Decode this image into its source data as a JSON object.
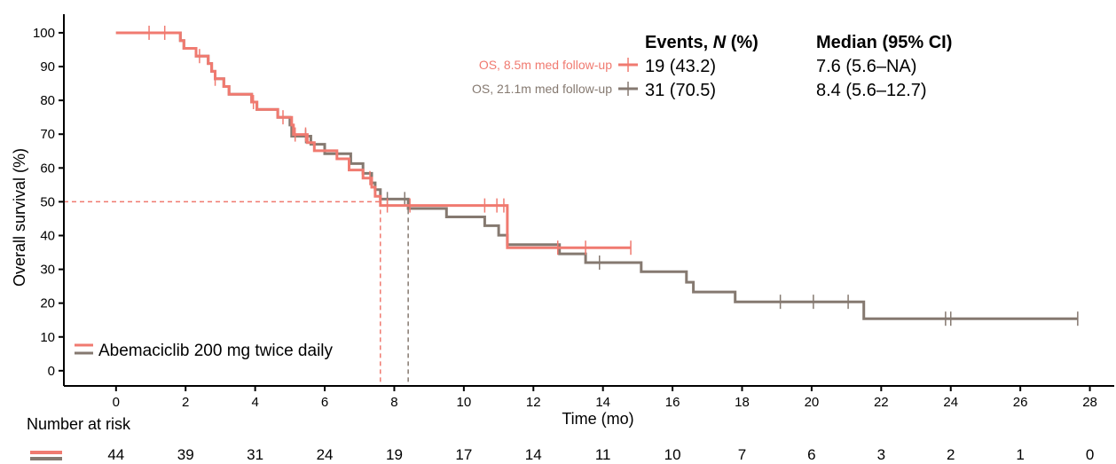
{
  "chart_data": {
    "type": "line",
    "subtype": "kaplan-meier",
    "xlabel": "Time (mo)",
    "ylabel": "Overall survival (%)",
    "xlim": [
      -1.5,
      28.7
    ],
    "ylim": [
      -4.5,
      105.5
    ],
    "xticks": [
      0,
      2,
      4,
      6,
      8,
      10,
      12,
      14,
      16,
      18,
      20,
      22,
      24,
      26,
      28
    ],
    "yticks": [
      0,
      10,
      20,
      30,
      40,
      50,
      60,
      70,
      80,
      90,
      100
    ],
    "grid": false,
    "legend": {
      "position": "bottom-left",
      "label": "Abemaciclib 200 mg twice daily"
    },
    "table_header": {
      "events": "Events, N (%)",
      "median": "Median (95% CI)"
    },
    "series": [
      {
        "name": "OS, 8.5m med follow-up",
        "color": "#f07a70",
        "events": "19 (43.2)",
        "median": "7.6 (5.6–NA)",
        "median_value": 7.6,
        "end_x": 14.8,
        "steps": [
          [
            0,
            100
          ],
          [
            1.85,
            100
          ],
          [
            1.85,
            97.7
          ],
          [
            1.95,
            97.7
          ],
          [
            1.95,
            95.4
          ],
          [
            2.3,
            95.4
          ],
          [
            2.3,
            93.1
          ],
          [
            2.65,
            93.1
          ],
          [
            2.65,
            90.9
          ],
          [
            2.75,
            90.9
          ],
          [
            2.75,
            88.6
          ],
          [
            2.85,
            88.6
          ],
          [
            2.85,
            86.4
          ],
          [
            3.1,
            86.4
          ],
          [
            3.1,
            84.1
          ],
          [
            3.25,
            84.1
          ],
          [
            3.25,
            81.8
          ],
          [
            3.9,
            81.8
          ],
          [
            3.9,
            79.5
          ],
          [
            4.05,
            79.5
          ],
          [
            4.05,
            77.3
          ],
          [
            4.65,
            77.3
          ],
          [
            4.65,
            75.0
          ],
          [
            5.05,
            75.0
          ],
          [
            5.05,
            72.7
          ],
          [
            5.1,
            72.7
          ],
          [
            5.1,
            69.9
          ],
          [
            5.5,
            69.9
          ],
          [
            5.5,
            67.5
          ],
          [
            5.7,
            67.5
          ],
          [
            5.7,
            65.1
          ],
          [
            6.35,
            65.1
          ],
          [
            6.35,
            62.7
          ],
          [
            6.7,
            62.7
          ],
          [
            6.7,
            59.4
          ],
          [
            7.1,
            59.4
          ],
          [
            7.1,
            57.0
          ],
          [
            7.35,
            57.0
          ],
          [
            7.35,
            54.3
          ],
          [
            7.45,
            54.3
          ],
          [
            7.45,
            51.6
          ],
          [
            7.6,
            51.6
          ],
          [
            7.6,
            48.9
          ],
          [
            11.25,
            48.9
          ],
          [
            11.25,
            36.4
          ],
          [
            14.8,
            36.4
          ]
        ],
        "censor_x": [
          0.95,
          1.4,
          2.4,
          2.85,
          3.95,
          4.8,
          5.15,
          5.45,
          7.3,
          7.8,
          8.45,
          10.6,
          10.95,
          11.15,
          12.7,
          13.5,
          14.8
        ]
      },
      {
        "name": "OS, 21.1m med follow-up",
        "color": "#857970",
        "events": "31 (70.5)",
        "median": "8.4 (5.6–12.7)",
        "median_value": 8.4,
        "end_x": 27.65,
        "steps": [
          [
            0,
            100
          ],
          [
            1.85,
            100
          ],
          [
            1.85,
            97.7
          ],
          [
            1.95,
            97.7
          ],
          [
            1.95,
            95.4
          ],
          [
            2.3,
            95.4
          ],
          [
            2.3,
            93.1
          ],
          [
            2.65,
            93.1
          ],
          [
            2.65,
            90.9
          ],
          [
            2.75,
            90.9
          ],
          [
            2.75,
            88.6
          ],
          [
            2.85,
            88.6
          ],
          [
            2.85,
            86.4
          ],
          [
            3.1,
            86.4
          ],
          [
            3.1,
            84.1
          ],
          [
            3.25,
            84.1
          ],
          [
            3.25,
            81.8
          ],
          [
            3.9,
            81.8
          ],
          [
            3.9,
            79.5
          ],
          [
            4.05,
            79.5
          ],
          [
            4.05,
            77.3
          ],
          [
            4.65,
            77.3
          ],
          [
            4.65,
            75.0
          ],
          [
            5.0,
            75.0
          ],
          [
            5.0,
            72.7
          ],
          [
            5.05,
            72.7
          ],
          [
            5.05,
            69.4
          ],
          [
            5.6,
            69.4
          ],
          [
            5.6,
            67.0
          ],
          [
            6.0,
            67.0
          ],
          [
            6.0,
            64.2
          ],
          [
            6.75,
            64.2
          ],
          [
            6.75,
            61.3
          ],
          [
            7.1,
            61.3
          ],
          [
            7.1,
            58.4
          ],
          [
            7.35,
            58.4
          ],
          [
            7.35,
            55.6
          ],
          [
            7.45,
            55.6
          ],
          [
            7.45,
            53.6
          ],
          [
            7.6,
            53.6
          ],
          [
            7.6,
            50.8
          ],
          [
            8.4,
            50.8
          ],
          [
            8.4,
            48.0
          ],
          [
            9.5,
            48.0
          ],
          [
            9.5,
            45.5
          ],
          [
            10.6,
            45.5
          ],
          [
            10.6,
            42.9
          ],
          [
            11.0,
            42.9
          ],
          [
            11.0,
            40.1
          ],
          [
            11.25,
            40.1
          ],
          [
            11.25,
            37.3
          ],
          [
            12.75,
            37.3
          ],
          [
            12.75,
            34.6
          ],
          [
            13.5,
            34.6
          ],
          [
            13.5,
            32.0
          ],
          [
            15.1,
            32.0
          ],
          [
            15.1,
            29.3
          ],
          [
            16.4,
            29.3
          ],
          [
            16.4,
            26.2
          ],
          [
            16.6,
            26.2
          ],
          [
            16.6,
            23.3
          ],
          [
            17.8,
            23.3
          ],
          [
            17.8,
            20.4
          ],
          [
            21.5,
            20.4
          ],
          [
            21.5,
            15.4
          ],
          [
            27.65,
            15.4
          ]
        ],
        "censor_x": [
          5.45,
          7.8,
          8.3,
          13.9,
          19.1,
          20.05,
          21.05,
          23.85,
          24.0,
          27.65
        ]
      }
    ],
    "median_guide_y": 50,
    "risk_table": {
      "title": "Number at risk",
      "times": [
        0,
        2,
        4,
        6,
        8,
        10,
        12,
        14,
        16,
        18,
        20,
        22,
        24,
        26,
        28
      ],
      "values": [
        "44",
        "39",
        "31",
        "24",
        "19",
        "17",
        "14",
        "11",
        "10",
        "7",
        "6",
        "3",
        "2",
        "1",
        "0"
      ]
    }
  }
}
